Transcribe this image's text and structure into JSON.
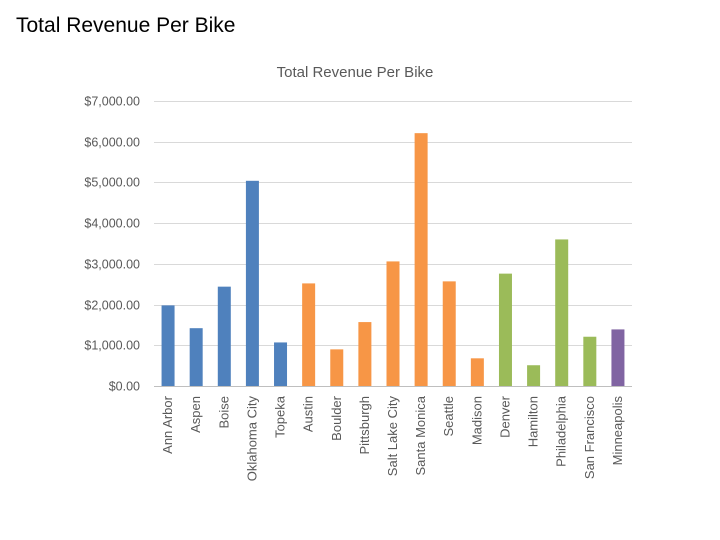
{
  "slide": {
    "title": "Total Revenue Per Bike"
  },
  "colors": {
    "group1": "#4f81bd",
    "group2": "#f79646",
    "group3": "#9bbb59",
    "group4": "#8064a2",
    "grid": "#d9d9d9",
    "text": "#595959"
  },
  "chart_data": {
    "type": "bar",
    "title": "Total Revenue Per Bike",
    "xlabel": "",
    "ylabel": "",
    "ylim": [
      0,
      7000
    ],
    "ytick_values": [
      0,
      1000,
      2000,
      3000,
      4000,
      5000,
      6000,
      7000
    ],
    "ytick_labels": [
      "$0.00",
      "$1,000.00",
      "$2,000.00",
      "$3,000.00",
      "$4,000.00",
      "$5,000.00",
      "$6,000.00",
      "$7,000.00"
    ],
    "grid": true,
    "legend": "none",
    "categories": [
      "Ann Arbor",
      "Aspen",
      "Boise",
      "Oklahoma City",
      "Topeka",
      "Austin",
      "Boulder",
      "Pittsburgh",
      "Salt Lake City",
      "Santa Monica",
      "Seattle",
      "Madison",
      "Denver",
      "Hamilton",
      "Philadelphia",
      "San Francisco",
      "Minneapolis"
    ],
    "values": [
      1980,
      1420,
      2440,
      5040,
      1070,
      2520,
      900,
      1570,
      3060,
      6210,
      2570,
      680,
      2760,
      510,
      3600,
      1210,
      1390
    ],
    "color_groups": [
      "group1",
      "group1",
      "group1",
      "group1",
      "group1",
      "group2",
      "group2",
      "group2",
      "group2",
      "group2",
      "group2",
      "group2",
      "group3",
      "group3",
      "group3",
      "group3",
      "group4"
    ]
  }
}
